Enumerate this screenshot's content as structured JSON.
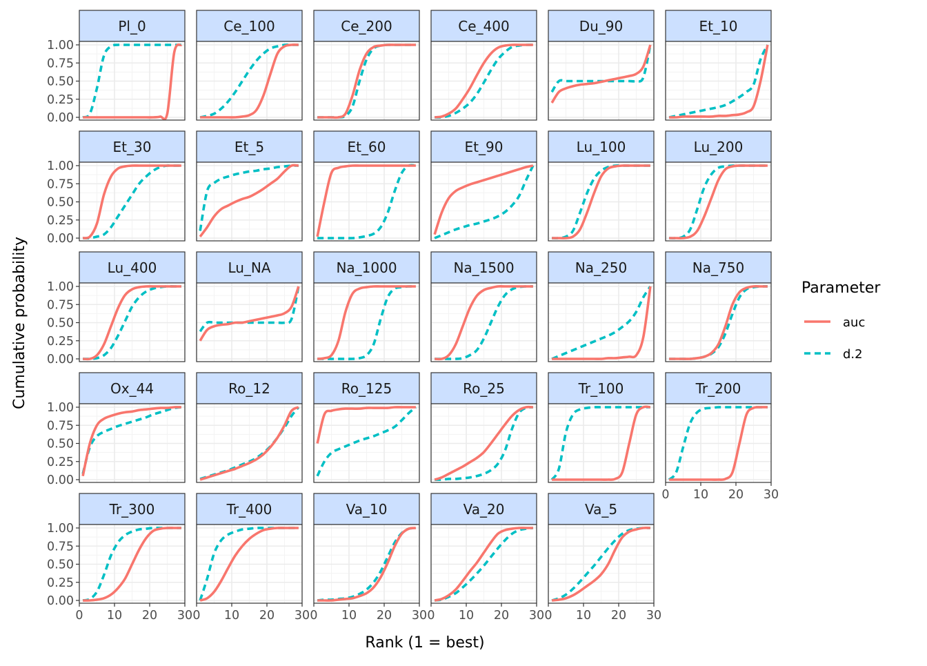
{
  "chart_data": {
    "type": "line",
    "xlabel": "Rank (1 = best)",
    "ylabel": "Cumulative probability",
    "xlim": [
      0,
      30
    ],
    "ylim": [
      0,
      1
    ],
    "x_ticks": [
      "0",
      "10",
      "20",
      "30"
    ],
    "x_tick_values": [
      0,
      10,
      20,
      30
    ],
    "y_ticks": [
      "0.00",
      "0.25",
      "0.50",
      "0.75",
      "1.00"
    ],
    "y_tick_values": [
      0,
      0.25,
      0.5,
      0.75,
      1
    ],
    "grid": true,
    "legend": {
      "title": "Parameter",
      "placement": "right",
      "entries": [
        {
          "name": "auc",
          "color": "#F8766D",
          "dash": "solid"
        },
        {
          "name": "d.2",
          "color": "#00BFC4",
          "dash": "dashed"
        }
      ]
    },
    "strip_fill": "#CCE0FF",
    "x": [
      1,
      3,
      5,
      7,
      9,
      11,
      13,
      15,
      17,
      19,
      21,
      23,
      25,
      27,
      29
    ],
    "panels": [
      {
        "label": "Pl_0",
        "auc": [
          0,
          0,
          0,
          0,
          0,
          0,
          0,
          0,
          0,
          0,
          0,
          0.01,
          0.05,
          0.9,
          1
        ],
        "d2": [
          0,
          0.05,
          0.4,
          0.85,
          0.98,
          1,
          1,
          1,
          1,
          1,
          1,
          1,
          1,
          1,
          1
        ]
      },
      {
        "label": "Ce_100",
        "auc": [
          0,
          0,
          0,
          0,
          0,
          0,
          0.01,
          0.03,
          0.1,
          0.3,
          0.6,
          0.88,
          0.98,
          1,
          1
        ],
        "d2": [
          0,
          0.02,
          0.05,
          0.12,
          0.22,
          0.35,
          0.5,
          0.65,
          0.78,
          0.88,
          0.95,
          0.98,
          1,
          1,
          1
        ]
      },
      {
        "label": "Ce_200",
        "auc": [
          0,
          0,
          0,
          0,
          0.05,
          0.3,
          0.65,
          0.88,
          0.97,
          0.99,
          1,
          1,
          1,
          1,
          1
        ],
        "d2": [
          0,
          0,
          0,
          0,
          0.02,
          0.15,
          0.5,
          0.8,
          0.95,
          0.99,
          1,
          1,
          1,
          1,
          1
        ]
      },
      {
        "label": "Ce_400",
        "auc": [
          0,
          0.01,
          0.05,
          0.12,
          0.25,
          0.4,
          0.58,
          0.75,
          0.88,
          0.96,
          0.99,
          1,
          1,
          1,
          1
        ],
        "d2": [
          0,
          0,
          0.02,
          0.06,
          0.12,
          0.2,
          0.32,
          0.48,
          0.65,
          0.8,
          0.9,
          0.97,
          0.99,
          1,
          1
        ]
      },
      {
        "label": "Du_90",
        "auc": [
          0.2,
          0.35,
          0.4,
          0.43,
          0.45,
          0.46,
          0.47,
          0.49,
          0.51,
          0.53,
          0.55,
          0.57,
          0.6,
          0.7,
          1
        ],
        "d2": [
          0.35,
          0.5,
          0.5,
          0.5,
          0.5,
          0.5,
          0.5,
          0.5,
          0.5,
          0.5,
          0.5,
          0.5,
          0.5,
          0.55,
          1
        ]
      },
      {
        "label": "Et_10",
        "auc": [
          0,
          0,
          0.01,
          0.01,
          0.01,
          0.01,
          0.01,
          0.02,
          0.02,
          0.03,
          0.04,
          0.07,
          0.15,
          0.5,
          1
        ],
        "d2": [
          0,
          0.02,
          0.04,
          0.06,
          0.08,
          0.1,
          0.12,
          0.14,
          0.17,
          0.22,
          0.28,
          0.35,
          0.45,
          0.8,
          1
        ]
      },
      {
        "label": "Et_30",
        "auc": [
          0,
          0.02,
          0.2,
          0.6,
          0.85,
          0.96,
          0.99,
          1,
          1,
          1,
          1,
          1,
          1,
          1,
          1
        ],
        "d2": [
          0,
          0,
          0.02,
          0.05,
          0.15,
          0.3,
          0.45,
          0.6,
          0.75,
          0.85,
          0.93,
          0.98,
          1,
          1,
          1
        ]
      },
      {
        "label": "Et_5",
        "auc": [
          0.02,
          0.15,
          0.3,
          0.4,
          0.45,
          0.5,
          0.54,
          0.57,
          0.62,
          0.68,
          0.75,
          0.82,
          0.92,
          1,
          1
        ],
        "d2": [
          0.1,
          0.65,
          0.76,
          0.82,
          0.85,
          0.88,
          0.9,
          0.92,
          0.93,
          0.95,
          0.96,
          0.98,
          0.99,
          1,
          1
        ]
      },
      {
        "label": "Et_60",
        "auc": [
          0.02,
          0.5,
          0.9,
          0.97,
          0.99,
          1,
          1,
          1,
          1,
          1,
          1,
          1,
          1,
          1,
          1
        ],
        "d2": [
          0,
          0,
          0,
          0,
          0,
          0,
          0.01,
          0.03,
          0.06,
          0.15,
          0.35,
          0.65,
          0.9,
          1,
          1
        ]
      },
      {
        "label": "Et_90",
        "auc": [
          0.05,
          0.35,
          0.55,
          0.65,
          0.7,
          0.74,
          0.77,
          0.8,
          0.83,
          0.86,
          0.89,
          0.92,
          0.95,
          0.98,
          1
        ],
        "d2": [
          0,
          0.04,
          0.08,
          0.12,
          0.15,
          0.18,
          0.2,
          0.23,
          0.26,
          0.3,
          0.36,
          0.45,
          0.58,
          0.8,
          1
        ]
      },
      {
        "label": "Lu_100",
        "auc": [
          0,
          0,
          0,
          0.02,
          0.12,
          0.35,
          0.62,
          0.85,
          0.96,
          0.99,
          1,
          1,
          1,
          1,
          1
        ],
        "d2": [
          0,
          0,
          0.02,
          0.1,
          0.35,
          0.62,
          0.82,
          0.93,
          0.98,
          1,
          1,
          1,
          1,
          1,
          1
        ]
      },
      {
        "label": "Lu_200",
        "auc": [
          0,
          0,
          0,
          0.02,
          0.1,
          0.3,
          0.55,
          0.8,
          0.95,
          0.99,
          1,
          1,
          1,
          1,
          1
        ],
        "d2": [
          0,
          0,
          0.02,
          0.12,
          0.4,
          0.7,
          0.88,
          0.97,
          0.99,
          1,
          1,
          1,
          1,
          1,
          1
        ]
      },
      {
        "label": "Lu_400",
        "auc": [
          0,
          0,
          0.05,
          0.2,
          0.45,
          0.7,
          0.88,
          0.96,
          0.99,
          1,
          1,
          1,
          1,
          1,
          1
        ],
        "d2": [
          0,
          0,
          0.01,
          0.05,
          0.15,
          0.32,
          0.52,
          0.72,
          0.85,
          0.93,
          0.97,
          0.99,
          1,
          1,
          1
        ]
      },
      {
        "label": "Lu_NA",
        "auc": [
          0.25,
          0.4,
          0.45,
          0.47,
          0.48,
          0.5,
          0.5,
          0.52,
          0.54,
          0.56,
          0.58,
          0.6,
          0.63,
          0.72,
          1
        ],
        "d2": [
          0.38,
          0.5,
          0.5,
          0.5,
          0.5,
          0.5,
          0.5,
          0.5,
          0.5,
          0.5,
          0.5,
          0.5,
          0.5,
          0.55,
          1
        ]
      },
      {
        "label": "Na_1000",
        "auc": [
          0,
          0.01,
          0.05,
          0.25,
          0.65,
          0.9,
          0.97,
          0.99,
          1,
          1,
          1,
          1,
          1,
          1,
          1
        ],
        "d2": [
          0,
          0,
          0,
          0,
          0,
          0,
          0.01,
          0.05,
          0.2,
          0.55,
          0.85,
          0.97,
          0.99,
          1,
          1
        ]
      },
      {
        "label": "Na_1500",
        "auc": [
          0,
          0,
          0.05,
          0.2,
          0.45,
          0.7,
          0.87,
          0.95,
          0.98,
          1,
          1,
          1,
          1,
          1,
          1
        ],
        "d2": [
          0,
          0,
          0,
          0,
          0.01,
          0.05,
          0.12,
          0.28,
          0.5,
          0.72,
          0.88,
          0.96,
          0.99,
          1,
          1
        ]
      },
      {
        "label": "Na_250",
        "auc": [
          0,
          0,
          0,
          0,
          0,
          0,
          0,
          0,
          0.01,
          0.01,
          0.02,
          0.03,
          0.05,
          0.3,
          1
        ],
        "d2": [
          0,
          0.04,
          0.08,
          0.12,
          0.16,
          0.2,
          0.24,
          0.28,
          0.32,
          0.37,
          0.44,
          0.52,
          0.65,
          0.85,
          1
        ]
      },
      {
        "label": "Na_750",
        "auc": [
          0,
          0,
          0,
          0,
          0.01,
          0.03,
          0.08,
          0.2,
          0.45,
          0.75,
          0.92,
          0.98,
          1,
          1,
          1
        ],
        "d2": [
          0,
          0,
          0,
          0,
          0.01,
          0.03,
          0.07,
          0.16,
          0.35,
          0.62,
          0.85,
          0.96,
          0.99,
          1,
          1
        ]
      },
      {
        "label": "Ox_44",
        "auc": [
          0.05,
          0.5,
          0.75,
          0.84,
          0.88,
          0.91,
          0.93,
          0.94,
          0.96,
          0.97,
          0.98,
          0.99,
          0.99,
          1,
          1
        ],
        "d2": [
          0.08,
          0.45,
          0.6,
          0.66,
          0.7,
          0.74,
          0.77,
          0.8,
          0.83,
          0.86,
          0.9,
          0.93,
          0.96,
          0.99,
          1
        ]
      },
      {
        "label": "Ro_12",
        "auc": [
          0,
          0.03,
          0.06,
          0.09,
          0.12,
          0.15,
          0.19,
          0.23,
          0.28,
          0.35,
          0.45,
          0.58,
          0.75,
          0.95,
          1
        ],
        "d2": [
          0.01,
          0.04,
          0.07,
          0.1,
          0.13,
          0.17,
          0.21,
          0.25,
          0.3,
          0.37,
          0.46,
          0.58,
          0.72,
          0.88,
          1
        ]
      },
      {
        "label": "Ro_125",
        "auc": [
          0.5,
          0.9,
          0.95,
          0.97,
          0.98,
          0.98,
          0.98,
          0.99,
          0.99,
          0.99,
          0.99,
          1,
          1,
          1,
          1
        ],
        "d2": [
          0.05,
          0.25,
          0.37,
          0.42,
          0.46,
          0.5,
          0.54,
          0.57,
          0.6,
          0.64,
          0.68,
          0.73,
          0.82,
          0.92,
          1
        ]
      },
      {
        "label": "Ro_25",
        "auc": [
          0,
          0.03,
          0.08,
          0.13,
          0.18,
          0.24,
          0.3,
          0.38,
          0.5,
          0.63,
          0.76,
          0.88,
          0.96,
          1,
          1
        ],
        "d2": [
          0,
          0,
          0.01,
          0.01,
          0.02,
          0.03,
          0.05,
          0.08,
          0.13,
          0.22,
          0.4,
          0.7,
          0.92,
          0.99,
          1
        ]
      },
      {
        "label": "Tr_100",
        "auc": [
          0,
          0,
          0,
          0,
          0,
          0,
          0,
          0,
          0,
          0.01,
          0.1,
          0.5,
          0.9,
          1,
          1
        ],
        "d2": [
          0,
          0.15,
          0.65,
          0.9,
          0.97,
          0.99,
          1,
          1,
          1,
          1,
          1,
          1,
          1,
          1,
          1
        ]
      },
      {
        "label": "Tr_200",
        "auc": [
          0,
          0,
          0,
          0,
          0,
          0,
          0,
          0,
          0.01,
          0.1,
          0.5,
          0.9,
          0.99,
          1,
          1
        ],
        "d2": [
          0,
          0.1,
          0.45,
          0.78,
          0.93,
          0.98,
          0.99,
          1,
          1,
          1,
          1,
          1,
          1,
          1,
          1
        ]
      },
      {
        "label": "Tr_300",
        "auc": [
          0,
          0,
          0.01,
          0.03,
          0.08,
          0.17,
          0.3,
          0.5,
          0.7,
          0.86,
          0.96,
          0.99,
          1,
          1,
          1
        ],
        "d2": [
          0,
          0.02,
          0.12,
          0.35,
          0.62,
          0.8,
          0.9,
          0.95,
          0.98,
          0.99,
          1,
          1,
          1,
          1,
          1
        ]
      },
      {
        "label": "Tr_400",
        "auc": [
          0,
          0.03,
          0.12,
          0.27,
          0.45,
          0.62,
          0.75,
          0.85,
          0.92,
          0.97,
          0.99,
          1,
          1,
          1,
          1
        ],
        "d2": [
          0,
          0.3,
          0.65,
          0.83,
          0.91,
          0.95,
          0.98,
          0.99,
          1,
          1,
          1,
          1,
          1,
          1,
          1
        ]
      },
      {
        "label": "Va_10",
        "auc": [
          0,
          0,
          0,
          0.01,
          0.02,
          0.03,
          0.06,
          0.1,
          0.18,
          0.32,
          0.52,
          0.75,
          0.92,
          0.99,
          1
        ],
        "d2": [
          0,
          0.01,
          0.01,
          0.02,
          0.03,
          0.05,
          0.09,
          0.15,
          0.25,
          0.4,
          0.6,
          0.8,
          0.93,
          0.99,
          1
        ]
      },
      {
        "label": "Va_20",
        "auc": [
          0,
          0.02,
          0.07,
          0.15,
          0.27,
          0.4,
          0.52,
          0.66,
          0.8,
          0.92,
          0.97,
          0.99,
          1,
          1,
          1
        ],
        "d2": [
          0,
          0.01,
          0.05,
          0.1,
          0.18,
          0.27,
          0.37,
          0.48,
          0.6,
          0.72,
          0.83,
          0.92,
          0.97,
          0.99,
          1
        ]
      },
      {
        "label": "Va_5",
        "auc": [
          0,
          0.01,
          0.03,
          0.07,
          0.13,
          0.2,
          0.27,
          0.36,
          0.5,
          0.7,
          0.87,
          0.95,
          0.98,
          1,
          1
        ],
        "d2": [
          0,
          0.03,
          0.08,
          0.16,
          0.26,
          0.37,
          0.48,
          0.6,
          0.72,
          0.83,
          0.92,
          0.97,
          0.99,
          1,
          1
        ]
      }
    ]
  }
}
